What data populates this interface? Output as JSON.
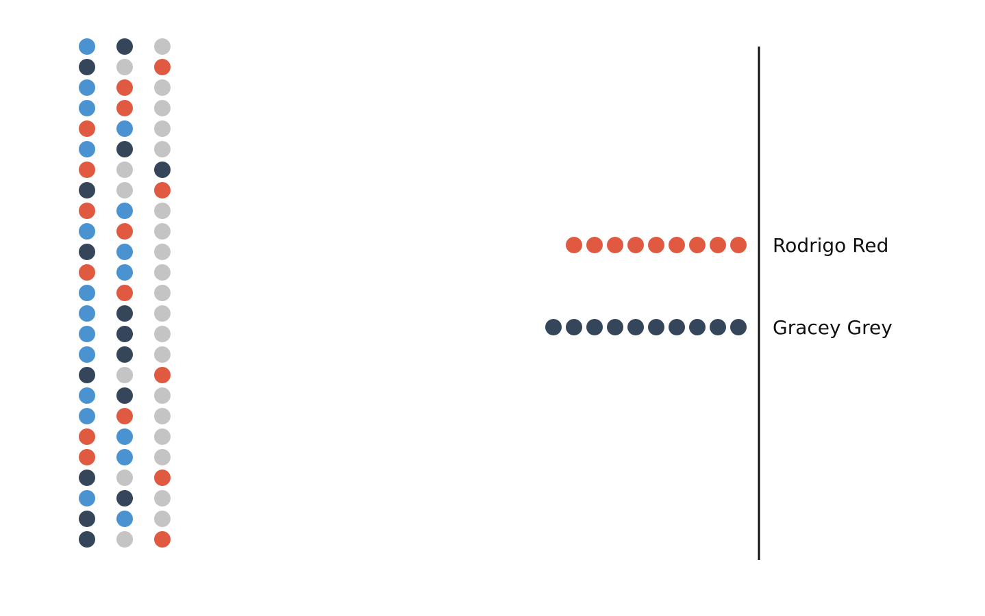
{
  "colors": {
    "blue": "#4a93d0",
    "navy": "#35465a",
    "red": "#e05a42",
    "grey": "#c4c4c4",
    "axis": "#111111"
  },
  "chart_data": {
    "type": "dot-plot",
    "ballots": {
      "columns": 3,
      "rows": [
        [
          "blue",
          "navy",
          "grey"
        ],
        [
          "navy",
          "grey",
          "red"
        ],
        [
          "blue",
          "red",
          "grey"
        ],
        [
          "blue",
          "red",
          "grey"
        ],
        [
          "red",
          "blue",
          "grey"
        ],
        [
          "blue",
          "navy",
          "grey"
        ],
        [
          "red",
          "grey",
          "navy"
        ],
        [
          "navy",
          "grey",
          "red"
        ],
        [
          "red",
          "blue",
          "grey"
        ],
        [
          "blue",
          "red",
          "grey"
        ],
        [
          "navy",
          "blue",
          "grey"
        ],
        [
          "red",
          "blue",
          "grey"
        ],
        [
          "blue",
          "red",
          "grey"
        ],
        [
          "blue",
          "navy",
          "grey"
        ],
        [
          "blue",
          "navy",
          "grey"
        ],
        [
          "blue",
          "navy",
          "grey"
        ],
        [
          "navy",
          "grey",
          "red"
        ],
        [
          "blue",
          "navy",
          "grey"
        ],
        [
          "blue",
          "red",
          "grey"
        ],
        [
          "red",
          "blue",
          "grey"
        ],
        [
          "red",
          "blue",
          "grey"
        ],
        [
          "navy",
          "grey",
          "red"
        ],
        [
          "blue",
          "navy",
          "grey"
        ],
        [
          "navy",
          "blue",
          "grey"
        ],
        [
          "navy",
          "grey",
          "red"
        ]
      ]
    },
    "tallies": [
      {
        "name": "Rodrigo Red",
        "color": "red",
        "count": 9
      },
      {
        "name": "Gracey Grey",
        "color": "navy",
        "count": 10
      }
    ]
  }
}
